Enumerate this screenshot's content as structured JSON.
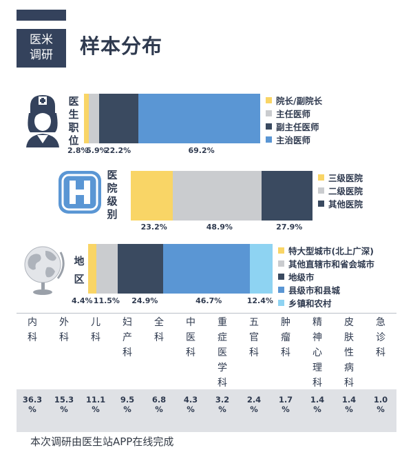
{
  "header": {
    "badge": [
      "医米",
      "调研"
    ],
    "title": "样本分布"
  },
  "colors": {
    "yellow": "#f9d566",
    "gray": "#cacccf",
    "navy": "#3a4a60",
    "blue": "#5a96d4",
    "light_blue": "#8ed3f2",
    "dark": "#34425c"
  },
  "chart_data": [
    {
      "type": "bar",
      "stacked": true,
      "orientation": "horizontal",
      "label": "医生职位",
      "series": [
        {
          "name": "院长/副院长",
          "value": 2.8,
          "label": "2.8%",
          "color": "#f9d566"
        },
        {
          "name": "主任医师",
          "value": 5.9,
          "label": "5.9%",
          "color": "#cacccf"
        },
        {
          "name": "副主任医师",
          "value": 22.2,
          "label": "22.2%",
          "color": "#3a4a60"
        },
        {
          "name": "主治医师",
          "value": 69.2,
          "label": "69.2%",
          "color": "#5a96d4"
        }
      ]
    },
    {
      "type": "bar",
      "stacked": true,
      "orientation": "horizontal",
      "label": "医院级别",
      "series": [
        {
          "name": "三级医院",
          "value": 23.2,
          "label": "23.2%",
          "color": "#f9d566"
        },
        {
          "name": "二级医院",
          "value": 48.9,
          "label": "48.9%",
          "color": "#cacccf"
        },
        {
          "name": "其他医院",
          "value": 27.9,
          "label": "27.9%",
          "color": "#3a4a60"
        }
      ]
    },
    {
      "type": "bar",
      "stacked": true,
      "orientation": "horizontal",
      "label": "地区",
      "series": [
        {
          "name": "特大型城市(北上广深)",
          "value": 4.4,
          "label": "4.4%",
          "color": "#f9d566"
        },
        {
          "name": "其他直辖市和省会城市",
          "value": 11.5,
          "label": "11.5%",
          "color": "#cacccf"
        },
        {
          "name": "地级市",
          "value": 24.9,
          "label": "24.9%",
          "color": "#3a4a60"
        },
        {
          "name": "县级市和县城",
          "value": 46.7,
          "label": "46.7%",
          "color": "#5a96d4"
        },
        {
          "name": "乡镇和农村",
          "value": 12.4,
          "label": "12.4%",
          "color": "#8ed3f2"
        }
      ]
    },
    {
      "type": "table",
      "columns": [
        "内科",
        "外科",
        "儿科",
        "妇产科",
        "全科",
        "中医科",
        "重症医学科",
        "五官科",
        "肿瘤科",
        "精神心理科",
        "皮肤性病科",
        "急诊科"
      ],
      "values": [
        "36.3%",
        "15.3%",
        "11.1%",
        "9.5%",
        "6.8%",
        "4.3%",
        "3.2%",
        "2.4%",
        "1.7%",
        "1.4%",
        "1.4%",
        "1.0%"
      ]
    }
  ],
  "footer": "本次调研由医生站APP在线完成"
}
